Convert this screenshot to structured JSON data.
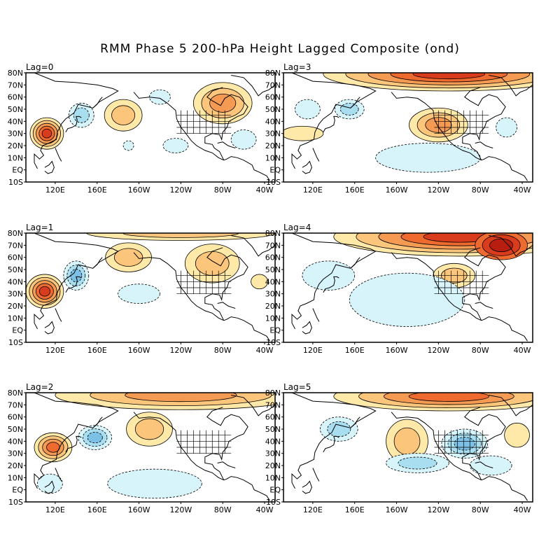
{
  "title": "RMM Phase 5 200-hPa Height Lagged Composite (ond)",
  "lat_labels": [
    "80N",
    "70N",
    "60N",
    "50N",
    "40N",
    "30N",
    "20N",
    "10N",
    "EQ",
    "10S"
  ],
  "lon_labels": [
    "120E",
    "160E",
    "160W",
    "120W",
    "80W",
    "40W"
  ],
  "colors": {
    "pos1": "#ffe9a8",
    "pos2": "#fcc57c",
    "pos3": "#f59a52",
    "pos4": "#ee6a2e",
    "pos5": "#d93c1c",
    "pos6": "#b81e10",
    "neg1": "#d7f4fb",
    "neg2": "#a8def0",
    "neg3": "#7cc0e6",
    "neg4": "#4f94d0",
    "coast": "#000000"
  },
  "panels": [
    {
      "label": "Lag=0",
      "blobs": [
        {
          "lon": 112,
          "lat": 30,
          "rx": 16,
          "ry": 13,
          "levels": [
            "pos1",
            "pos2",
            "pos3",
            "pos4",
            "pos5"
          ]
        },
        {
          "lon": -175,
          "lat": 45,
          "rx": 18,
          "ry": 13,
          "levels": [
            "pos1",
            "pos2"
          ]
        },
        {
          "lon": -80,
          "lat": 55,
          "rx": 28,
          "ry": 17,
          "levels": [
            "pos1",
            "pos2",
            "pos3"
          ]
        },
        {
          "lon": 145,
          "lat": 45,
          "rx": 12,
          "ry": 10,
          "levels": [
            "neg1",
            "neg2"
          ]
        },
        {
          "lon": -140,
          "lat": 60,
          "rx": 10,
          "ry": 6,
          "levels": [
            "neg1"
          ]
        },
        {
          "lon": -125,
          "lat": 20,
          "rx": 12,
          "ry": 6,
          "levels": [
            "neg1"
          ]
        },
        {
          "lon": -60,
          "lat": 25,
          "rx": 12,
          "ry": 8,
          "levels": [
            "neg1"
          ]
        },
        {
          "lon": -170,
          "lat": 20,
          "rx": 5,
          "ry": 4,
          "levels": [
            "neg1"
          ]
        }
      ]
    },
    {
      "label": "Lag=3",
      "blobs": [
        {
          "lon": -110,
          "lat": 79,
          "rx": 120,
          "ry": 14,
          "levels": [
            "pos1",
            "pos2",
            "pos3",
            "pos4",
            "pos5"
          ]
        },
        {
          "lon": -120,
          "lat": 37,
          "rx": 28,
          "ry": 14,
          "levels": [
            "pos1",
            "pos2",
            "pos3"
          ]
        },
        {
          "lon": 110,
          "lat": 30,
          "rx": 20,
          "ry": 6,
          "levels": [
            "pos1"
          ]
        },
        {
          "lon": 155,
          "lat": 50,
          "rx": 14,
          "ry": 8,
          "levels": [
            "neg1",
            "neg2"
          ]
        },
        {
          "lon": 115,
          "lat": 50,
          "rx": 12,
          "ry": 8,
          "levels": [
            "neg1"
          ]
        },
        {
          "lon": -130,
          "lat": 10,
          "rx": 50,
          "ry": 12,
          "levels": [
            "neg1"
          ]
        },
        {
          "lon": -55,
          "lat": 35,
          "rx": 10,
          "ry": 8,
          "levels": [
            "neg1"
          ]
        }
      ]
    },
    {
      "label": "Lag=1",
      "blobs": [
        {
          "lon": 110,
          "lat": 32,
          "rx": 18,
          "ry": 14,
          "levels": [
            "pos1",
            "pos2",
            "pos3",
            "pos4",
            "pos5"
          ]
        },
        {
          "lon": -170,
          "lat": 60,
          "rx": 22,
          "ry": 12,
          "levels": [
            "pos1",
            "pos2"
          ]
        },
        {
          "lon": -90,
          "lat": 55,
          "rx": 26,
          "ry": 16,
          "levels": [
            "pos1",
            "pos2"
          ]
        },
        {
          "lon": -120,
          "lat": 80,
          "rx": 90,
          "ry": 6,
          "levels": [
            "pos1",
            "pos2"
          ]
        },
        {
          "lon": 140,
          "lat": 45,
          "rx": 12,
          "ry": 12,
          "levels": [
            "neg1",
            "neg2",
            "neg3"
          ]
        },
        {
          "lon": -160,
          "lat": 30,
          "rx": 20,
          "ry": 8,
          "levels": [
            "neg1"
          ]
        },
        {
          "lon": -45,
          "lat": 40,
          "rx": 8,
          "ry": 6,
          "levels": [
            "pos1"
          ]
        }
      ]
    },
    {
      "label": "Lag=4",
      "blobs": [
        {
          "lon": -100,
          "lat": 77,
          "rx": 120,
          "ry": 16,
          "levels": [
            "pos1",
            "pos2",
            "pos3",
            "pos4",
            "pos5"
          ]
        },
        {
          "lon": -60,
          "lat": 70,
          "rx": 25,
          "ry": 12,
          "levels": [
            "pos4",
            "pos5",
            "pos6"
          ]
        },
        {
          "lon": -105,
          "lat": 45,
          "rx": 20,
          "ry": 10,
          "levels": [
            "pos1",
            "pos2"
          ]
        },
        {
          "lon": -150,
          "lat": 25,
          "rx": 55,
          "ry": 22,
          "levels": [
            "neg1"
          ]
        },
        {
          "lon": 135,
          "lat": 45,
          "rx": 25,
          "ry": 12,
          "levels": [
            "neg1"
          ]
        }
      ]
    },
    {
      "label": "Lag=2",
      "blobs": [
        {
          "lon": 118,
          "lat": 35,
          "rx": 18,
          "ry": 12,
          "levels": [
            "pos1",
            "pos2",
            "pos3",
            "pos4"
          ]
        },
        {
          "lon": -120,
          "lat": 78,
          "rx": 120,
          "ry": 12,
          "levels": [
            "pos1",
            "pos2",
            "pos3"
          ]
        },
        {
          "lon": -150,
          "lat": 50,
          "rx": 22,
          "ry": 14,
          "levels": [
            "pos1",
            "pos2"
          ]
        },
        {
          "lon": 158,
          "lat": 43,
          "rx": 16,
          "ry": 10,
          "levels": [
            "neg1",
            "neg2",
            "neg3"
          ]
        },
        {
          "lon": -145,
          "lat": 5,
          "rx": 45,
          "ry": 12,
          "levels": [
            "neg1"
          ]
        },
        {
          "lon": 115,
          "lat": 5,
          "rx": 12,
          "ry": 8,
          "levels": [
            "neg1"
          ]
        }
      ]
    },
    {
      "label": "Lag=5",
      "blobs": [
        {
          "lon": -110,
          "lat": 77,
          "rx": 110,
          "ry": 12,
          "levels": [
            "pos1",
            "pos2",
            "pos3",
            "pos4"
          ]
        },
        {
          "lon": -150,
          "lat": 40,
          "rx": 20,
          "ry": 18,
          "levels": [
            "pos1",
            "pos2"
          ]
        },
        {
          "lon": -45,
          "lat": 45,
          "rx": 12,
          "ry": 10,
          "levels": [
            "pos1"
          ]
        },
        {
          "lon": -95,
          "lat": 38,
          "rx": 22,
          "ry": 12,
          "levels": [
            "neg1",
            "neg2",
            "neg3"
          ]
        },
        {
          "lon": 145,
          "lat": 50,
          "rx": 18,
          "ry": 10,
          "levels": [
            "neg1",
            "neg2"
          ]
        },
        {
          "lon": -140,
          "lat": 22,
          "rx": 30,
          "ry": 8,
          "levels": [
            "neg1",
            "neg2"
          ]
        },
        {
          "lon": -70,
          "lat": 20,
          "rx": 20,
          "ry": 8,
          "levels": [
            "neg1"
          ]
        }
      ]
    }
  ]
}
